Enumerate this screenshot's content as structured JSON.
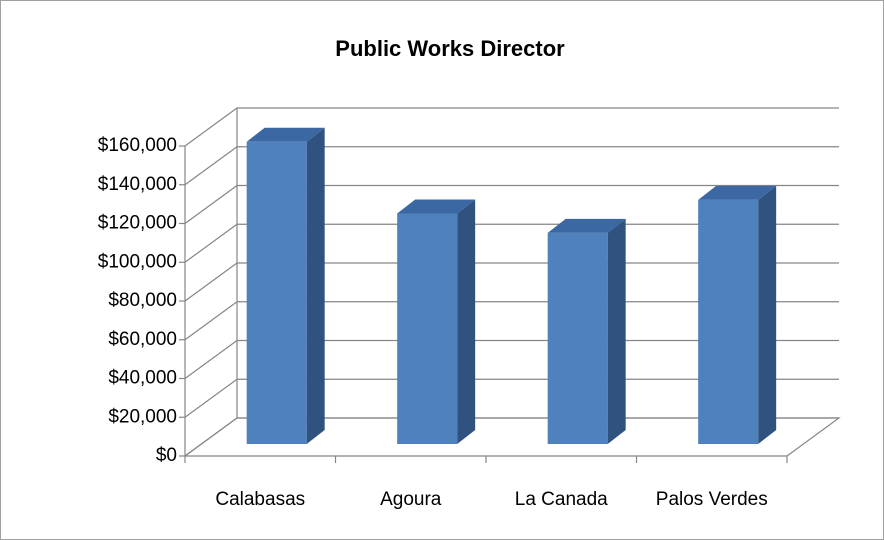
{
  "chart_data": {
    "type": "bar3d",
    "title": "Public Works Director",
    "categories": [
      "Calabasas",
      "Agoura",
      "La Canada",
      "Palos Verdes"
    ],
    "values": [
      156000,
      119000,
      109000,
      126000
    ],
    "color": "#4f81bd",
    "ylim": [
      0,
      160000
    ],
    "yticks": [
      {
        "value": 0,
        "label": "$0"
      },
      {
        "value": 20000,
        "label": "$20,000"
      },
      {
        "value": 40000,
        "label": "$40,000"
      },
      {
        "value": 60000,
        "label": "$60,000"
      },
      {
        "value": 80000,
        "label": "$80,000"
      },
      {
        "value": 100000,
        "label": "$100,000"
      },
      {
        "value": 120000,
        "label": "$120,000"
      },
      {
        "value": 140000,
        "label": "$140,000"
      },
      {
        "value": 160000,
        "label": "$160,000"
      }
    ],
    "grid": true
  }
}
